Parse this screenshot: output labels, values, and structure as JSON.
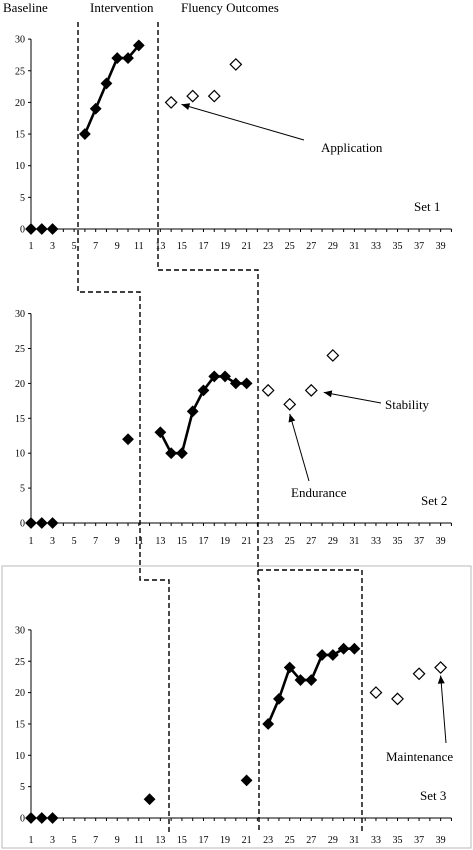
{
  "chart_data": {
    "type": "line",
    "phase_labels": [
      "Baseline",
      "Intervention",
      "Fluency Outcomes"
    ],
    "xlim": [
      1,
      40
    ],
    "ylim": [
      0,
      30
    ],
    "x_ticks": [
      1,
      3,
      5,
      7,
      9,
      11,
      13,
      15,
      17,
      19,
      21,
      23,
      25,
      27,
      29,
      31,
      33,
      35,
      37,
      39
    ],
    "y_ticks": [
      0,
      5,
      10,
      15,
      20,
      25,
      30
    ],
    "panels": [
      {
        "name": "Set 1",
        "baseline": [
          [
            1,
            0
          ],
          [
            2,
            0
          ],
          [
            3,
            0
          ]
        ],
        "intervention_segments": [
          [
            [
              6,
              15
            ],
            [
              7,
              19
            ],
            [
              8,
              23
            ],
            [
              9,
              27
            ],
            [
              10,
              27
            ],
            [
              11,
              29
            ]
          ]
        ],
        "intervention_points": [],
        "outcomes": [
          [
            14,
            20
          ],
          [
            16,
            21
          ],
          [
            18,
            21
          ],
          [
            20,
            26
          ]
        ],
        "annotations": [
          {
            "text": "Application",
            "x": 14.4,
            "y": 20
          }
        ]
      },
      {
        "name": "Set 2",
        "baseline": [
          [
            1,
            0
          ],
          [
            2,
            0
          ],
          [
            3,
            0
          ]
        ],
        "intervention_segments": [
          [
            [
              13,
              13
            ],
            [
              14,
              10
            ],
            [
              15,
              10
            ],
            [
              16,
              16
            ],
            [
              17,
              19
            ],
            [
              18,
              21
            ],
            [
              19,
              21
            ],
            [
              20,
              20
            ],
            [
              21,
              20
            ]
          ]
        ],
        "intervention_points": [
          [
            10,
            12
          ]
        ],
        "outcomes": [
          [
            23,
            19
          ],
          [
            25,
            17
          ],
          [
            27,
            19
          ],
          [
            29,
            24
          ]
        ],
        "annotations": [
          {
            "text": "Stability",
            "x": 27.5,
            "y": 19
          },
          {
            "text": "Endurance",
            "x": 25,
            "y": 16.5
          }
        ]
      },
      {
        "name": "Set 3",
        "baseline": [
          [
            1,
            0
          ],
          [
            2,
            0
          ],
          [
            3,
            0
          ]
        ],
        "intervention_segments": [
          [
            [
              23,
              15
            ],
            [
              24,
              19
            ],
            [
              25,
              24
            ],
            [
              26,
              22
            ],
            [
              27,
              22
            ],
            [
              28,
              26
            ],
            [
              29,
              26
            ],
            [
              30,
              27
            ],
            [
              31,
              27
            ]
          ]
        ],
        "intervention_points": [
          [
            12,
            3
          ],
          [
            21,
            6
          ]
        ],
        "outcomes": [
          [
            33,
            20
          ],
          [
            35,
            19
          ],
          [
            37,
            23
          ],
          [
            39,
            24
          ]
        ],
        "annotations": [
          {
            "text": "Maintenance",
            "x": 39,
            "y": 24
          }
        ]
      }
    ]
  }
}
